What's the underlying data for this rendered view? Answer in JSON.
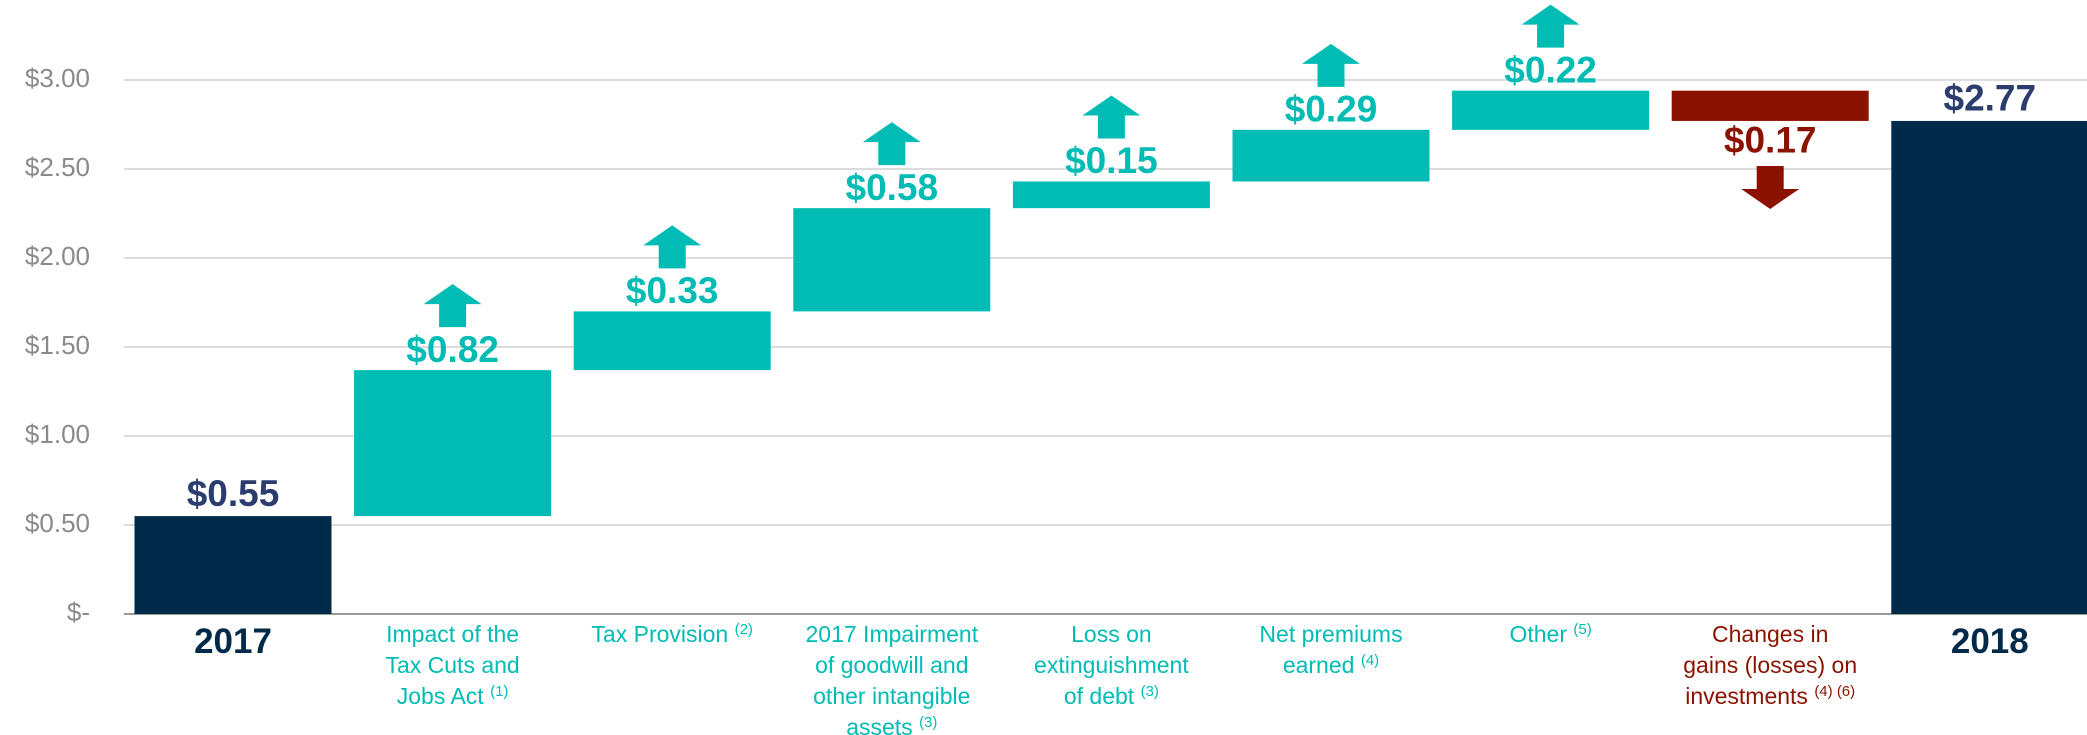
{
  "chart_data": {
    "type": "waterfall",
    "categories": [
      "2017",
      "Impact of the\nTax Cuts and\nJobs Act",
      "Tax Provision",
      "2017 Impairment\nof goodwill and\nother intangible\nassets",
      "Loss on\nextinguishment\nof debt",
      "Net premiums\nearned",
      "Other",
      "Changes in\ngains (losses) on\ninvestments",
      "2018"
    ],
    "category_notes": [
      null,
      "(1)",
      "(2)",
      "(3)",
      "(3)",
      "(4)",
      "(5)",
      "(4) (6)",
      null
    ],
    "values": [
      0.55,
      0.82,
      0.33,
      0.58,
      0.15,
      0.29,
      0.22,
      -0.17,
      2.77
    ],
    "value_labels": [
      "$0.55",
      "$0.82",
      "$0.33",
      "$0.58",
      "$0.15",
      "$0.29",
      "$0.22",
      "$0.17",
      "$2.77"
    ],
    "colors": {
      "total": "#002a4a",
      "increase": "#00bcb4",
      "decrease": "#8b1200",
      "total_label": "#2a3d6e"
    },
    "ylim": [
      0,
      3
    ],
    "yticks": [
      {
        "value": 0,
        "label": "$-"
      },
      {
        "value": 0.5,
        "label": "$0.50"
      },
      {
        "value": 1,
        "label": "$1.00"
      },
      {
        "value": 1.5,
        "label": "$1.50"
      },
      {
        "value": 2,
        "label": "$2.00"
      },
      {
        "value": 2.5,
        "label": "$2.50"
      },
      {
        "value": 3,
        "label": "$3.00"
      }
    ],
    "grid": true
  }
}
